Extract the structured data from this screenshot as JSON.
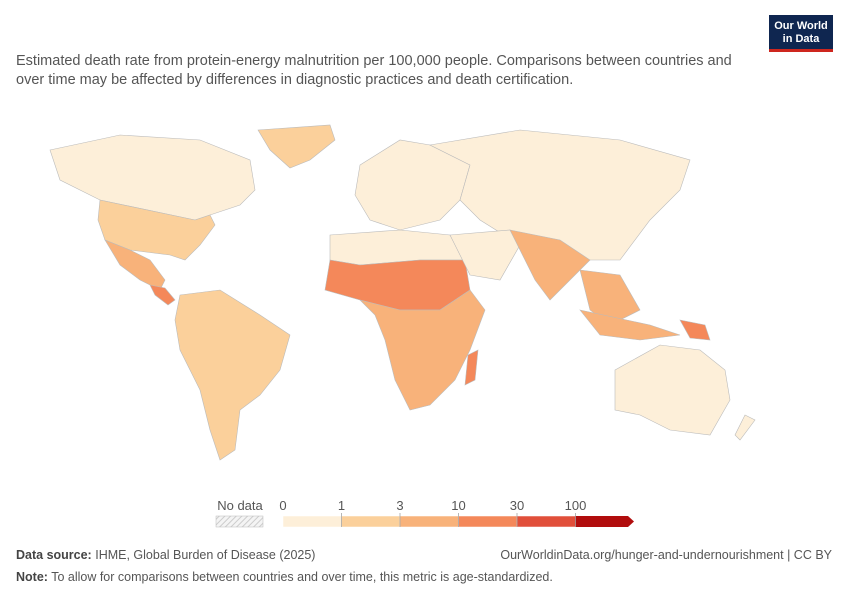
{
  "logo": [
    "Our World",
    "in Data"
  ],
  "subtitle": "Estimated death rate from protein-energy malnutrition per 100,000 people. Comparisons between countries and over time may be affected by differences in diagnostic practices and death certification.",
  "legend": {
    "no_data_label": "No data",
    "bins": [
      0,
      1,
      3,
      10,
      30,
      100
    ],
    "colors": [
      "#fdefd9",
      "#fbd09b",
      "#f8b27a",
      "#f4885a",
      "#e14f3a",
      "#b10d0d"
    ]
  },
  "footer": {
    "source_label": "Data source:",
    "source": "IHME, Global Burden of Disease (2025)",
    "url": "OurWorldinData.org/hunger-and-undernourishment | CC BY",
    "note_label": "Note:",
    "note": "To allow for comparisons between countries and over time, this metric is age-standardized."
  }
}
